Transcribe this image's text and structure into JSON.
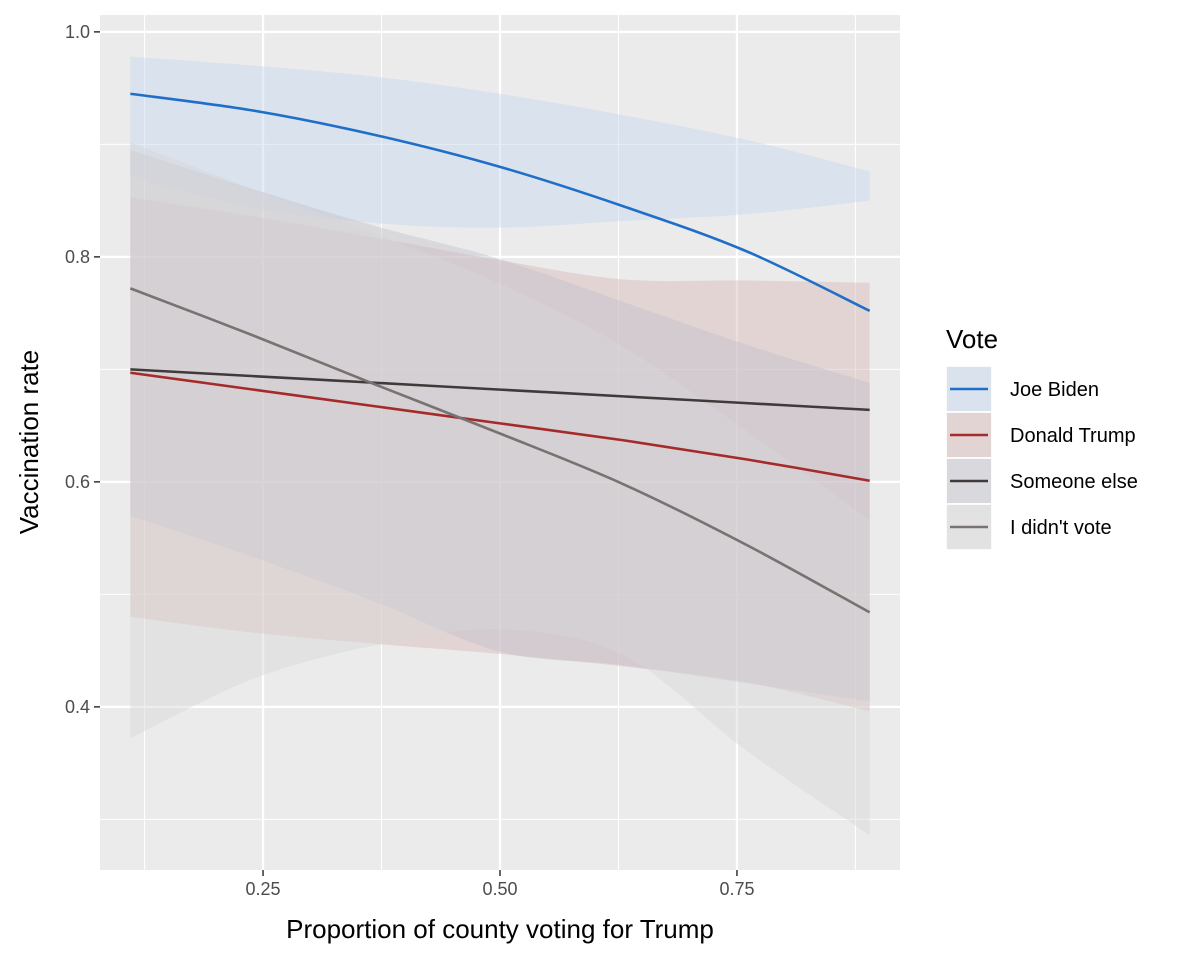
{
  "chart_data": {
    "type": "line",
    "title": "",
    "xlabel": "Proportion of county voting for Trump",
    "ylabel": "Vaccination rate",
    "xlim": [
      0.078,
      0.922
    ],
    "ylim": [
      0.255,
      1.015
    ],
    "x_ticks": [
      0.25,
      0.5,
      0.75
    ],
    "x_tick_labels": [
      "0.25",
      "0.50",
      "0.75"
    ],
    "y_ticks": [
      0.4,
      0.6,
      0.8,
      1.0
    ],
    "y_tick_labels": [
      "0.4",
      "0.6",
      "0.8",
      "1.0"
    ],
    "grid": true,
    "legend_title": "Vote",
    "legend_position": "right",
    "x": [
      0.11,
      0.24,
      0.37,
      0.5,
      0.63,
      0.76,
      0.89
    ],
    "series": [
      {
        "name": "Joe Biden",
        "color": "#1f6fc8",
        "band_color": "#c6d6ef",
        "values": [
          0.945,
          0.93,
          0.908,
          0.88,
          0.845,
          0.805,
          0.752
        ],
        "lower": [
          0.872,
          0.844,
          0.83,
          0.826,
          0.832,
          0.838,
          0.85
        ],
        "upper": [
          0.978,
          0.97,
          0.96,
          0.945,
          0.926,
          0.904,
          0.876
        ]
      },
      {
        "name": "Donald Trump",
        "color": "#a52a2a",
        "band_color": "#d9b9b9",
        "values": [
          0.697,
          0.682,
          0.667,
          0.652,
          0.637,
          0.62,
          0.601
        ],
        "lower": [
          0.48,
          0.466,
          0.456,
          0.447,
          0.436,
          0.422,
          0.396
        ],
        "upper": [
          0.853,
          0.836,
          0.817,
          0.797,
          0.78,
          0.779,
          0.777
        ]
      },
      {
        "name": "Someone else",
        "color": "#403a3a",
        "band_color": "#c2c2cc",
        "values": [
          0.7,
          0.694,
          0.688,
          0.682,
          0.676,
          0.67,
          0.664
        ],
        "lower": [
          0.57,
          0.533,
          0.493,
          0.449,
          0.437,
          0.421,
          0.405
        ],
        "upper": [
          0.895,
          0.86,
          0.827,
          0.798,
          0.76,
          0.722,
          0.688
        ]
      },
      {
        "name": "I didn't vote",
        "color": "#7a7171",
        "band_color": "#d7d7d7",
        "values": [
          0.772,
          0.73,
          0.686,
          0.643,
          0.598,
          0.544,
          0.484
        ],
        "lower": [
          0.372,
          0.425,
          0.455,
          0.469,
          0.446,
          0.361,
          0.286
        ],
        "upper": [
          0.902,
          0.86,
          0.82,
          0.776,
          0.72,
          0.645,
          0.566
        ]
      }
    ]
  }
}
